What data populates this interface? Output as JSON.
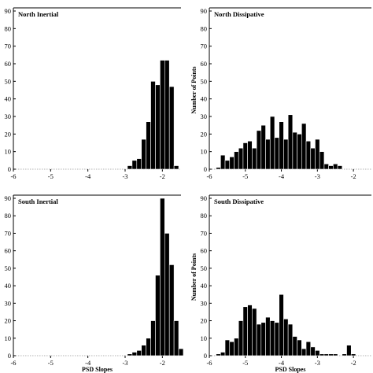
{
  "chart_data": [
    {
      "type": "bar",
      "title": "North Inertial",
      "xlabel": "",
      "ylabel": "",
      "xlim": [
        -6,
        -1.5
      ],
      "ylim": [
        0,
        90
      ],
      "bin_width": 0.125,
      "xticks": [
        -6,
        -5,
        -4,
        -3,
        -2
      ],
      "yticks": [
        0,
        10,
        20,
        30,
        40,
        50,
        60,
        70,
        80,
        90
      ],
      "bins": [
        {
          "x": -2.875,
          "y": 2
        },
        {
          "x": -2.75,
          "y": 5
        },
        {
          "x": -2.625,
          "y": 6
        },
        {
          "x": -2.5,
          "y": 17
        },
        {
          "x": -2.375,
          "y": 27
        },
        {
          "x": -2.25,
          "y": 50
        },
        {
          "x": -2.125,
          "y": 48
        },
        {
          "x": -2.0,
          "y": 62
        },
        {
          "x": -1.875,
          "y": 62
        },
        {
          "x": -1.75,
          "y": 47
        },
        {
          "x": -1.625,
          "y": 2
        }
      ]
    },
    {
      "type": "bar",
      "title": "North Dissipative",
      "xlabel": "",
      "ylabel": "Number of Points",
      "xlim": [
        -6,
        -1.5
      ],
      "ylim": [
        0,
        90
      ],
      "bin_width": 0.125,
      "xticks": [
        -6,
        -5,
        -4,
        -3,
        -2
      ],
      "yticks": [
        0,
        10,
        20,
        30,
        40,
        50,
        60,
        70,
        80,
        90
      ],
      "bins": [
        {
          "x": -5.75,
          "y": 1
        },
        {
          "x": -5.625,
          "y": 8
        },
        {
          "x": -5.5,
          "y": 5
        },
        {
          "x": -5.375,
          "y": 7
        },
        {
          "x": -5.25,
          "y": 10
        },
        {
          "x": -5.125,
          "y": 12
        },
        {
          "x": -5.0,
          "y": 15
        },
        {
          "x": -4.875,
          "y": 16
        },
        {
          "x": -4.75,
          "y": 12
        },
        {
          "x": -4.625,
          "y": 22
        },
        {
          "x": -4.5,
          "y": 25
        },
        {
          "x": -4.375,
          "y": 17
        },
        {
          "x": -4.25,
          "y": 30
        },
        {
          "x": -4.125,
          "y": 18
        },
        {
          "x": -4.0,
          "y": 27
        },
        {
          "x": -3.875,
          "y": 17
        },
        {
          "x": -3.75,
          "y": 31
        },
        {
          "x": -3.625,
          "y": 21
        },
        {
          "x": -3.5,
          "y": 20
        },
        {
          "x": -3.375,
          "y": 26
        },
        {
          "x": -3.25,
          "y": 16
        },
        {
          "x": -3.125,
          "y": 12
        },
        {
          "x": -3.0,
          "y": 17
        },
        {
          "x": -2.875,
          "y": 10
        },
        {
          "x": -2.75,
          "y": 3
        },
        {
          "x": -2.625,
          "y": 2
        },
        {
          "x": -2.5,
          "y": 3
        },
        {
          "x": -2.375,
          "y": 2
        }
      ]
    },
    {
      "type": "bar",
      "title": "South Inertial",
      "xlabel": "PSD Slopes",
      "ylabel": "",
      "xlim": [
        -6,
        -1.5
      ],
      "ylim": [
        0,
        90
      ],
      "bin_width": 0.125,
      "xticks": [
        -6,
        -5,
        -4,
        -3,
        -2
      ],
      "yticks": [
        0,
        10,
        20,
        30,
        40,
        50,
        60,
        70,
        80,
        90
      ],
      "bins": [
        {
          "x": -2.875,
          "y": 1
        },
        {
          "x": -2.75,
          "y": 2
        },
        {
          "x": -2.625,
          "y": 3
        },
        {
          "x": -2.5,
          "y": 6
        },
        {
          "x": -2.375,
          "y": 10
        },
        {
          "x": -2.25,
          "y": 20
        },
        {
          "x": -2.125,
          "y": 46
        },
        {
          "x": -2.0,
          "y": 90
        },
        {
          "x": -1.875,
          "y": 70
        },
        {
          "x": -1.75,
          "y": 52
        },
        {
          "x": -1.625,
          "y": 20
        },
        {
          "x": -1.5,
          "y": 4
        }
      ]
    },
    {
      "type": "bar",
      "title": "South Dissipative",
      "xlabel": "PSD Slopes",
      "ylabel": "Number of Points",
      "xlim": [
        -6,
        -1.5
      ],
      "ylim": [
        0,
        90
      ],
      "bin_width": 0.125,
      "xticks": [
        -6,
        -5,
        -4,
        -3,
        -2
      ],
      "yticks": [
        0,
        10,
        20,
        30,
        40,
        50,
        60,
        70,
        80,
        90
      ],
      "bins": [
        {
          "x": -5.75,
          "y": 1
        },
        {
          "x": -5.625,
          "y": 2
        },
        {
          "x": -5.5,
          "y": 9
        },
        {
          "x": -5.375,
          "y": 8
        },
        {
          "x": -5.25,
          "y": 10
        },
        {
          "x": -5.125,
          "y": 20
        },
        {
          "x": -5.0,
          "y": 28
        },
        {
          "x": -4.875,
          "y": 29
        },
        {
          "x": -4.75,
          "y": 27
        },
        {
          "x": -4.625,
          "y": 18
        },
        {
          "x": -4.5,
          "y": 19
        },
        {
          "x": -4.375,
          "y": 22
        },
        {
          "x": -4.25,
          "y": 20
        },
        {
          "x": -4.125,
          "y": 19
        },
        {
          "x": -4.0,
          "y": 35
        },
        {
          "x": -3.875,
          "y": 21
        },
        {
          "x": -3.75,
          "y": 18
        },
        {
          "x": -3.625,
          "y": 11
        },
        {
          "x": -3.5,
          "y": 9
        },
        {
          "x": -3.375,
          "y": 4
        },
        {
          "x": -3.25,
          "y": 8
        },
        {
          "x": -3.125,
          "y": 5
        },
        {
          "x": -3.0,
          "y": 3
        },
        {
          "x": -2.875,
          "y": 1
        },
        {
          "x": -2.75,
          "y": 1
        },
        {
          "x": -2.625,
          "y": 1
        },
        {
          "x": -2.5,
          "y": 1
        },
        {
          "x": -2.25,
          "y": 1
        },
        {
          "x": -2.125,
          "y": 6
        },
        {
          "x": -2.0,
          "y": 1
        }
      ]
    }
  ]
}
